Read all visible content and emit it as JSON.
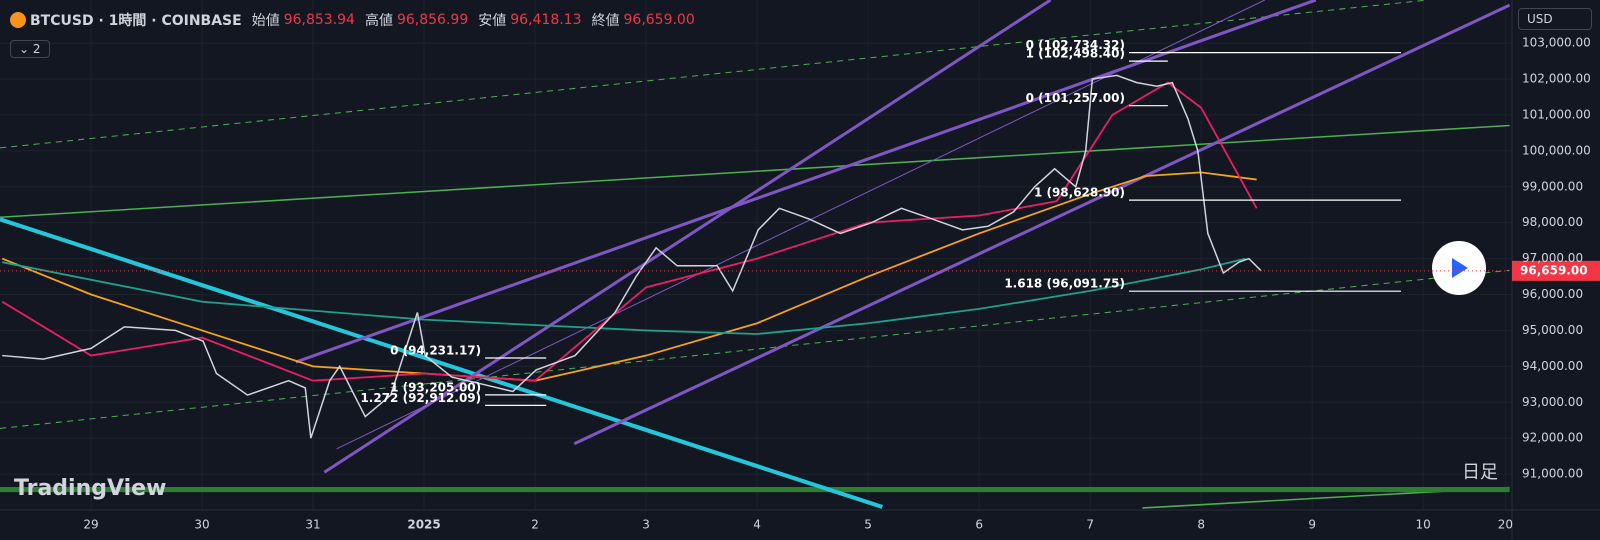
{
  "header": {
    "symbol": "BTCUSD · 1時間 · COINBASE",
    "open_label": "始値",
    "open": "96,853.94",
    "high_label": "高値",
    "high": "96,856.99",
    "low_label": "安値",
    "low": "96,418.13",
    "close_label": "終値",
    "close": "96,659.00"
  },
  "ui": {
    "currency": "USD",
    "indicators": "2",
    "logo": "TradingView",
    "timeframe": "日足"
  },
  "chart_data": {
    "type": "line",
    "x": [
      -0.8,
      -0.43,
      0,
      0.3,
      0.76,
      1.01,
      1.13,
      1.41,
      1.78,
      1.93,
      1.98,
      2.15,
      2.24,
      2.47,
      2.7,
      2.94,
      3.01,
      3.25,
      3.53,
      3.8,
      4.01,
      4.36,
      4.72,
      4.91,
      5.09,
      5.28,
      5.64,
      5.78,
      6.01,
      6.2,
      6.47,
      6.75,
      7.03,
      7.3,
      7.58,
      7.85,
      8.08,
      8.31,
      8.5,
      8.68,
      8.87,
      8.96,
      9.02,
      9.24,
      9.42,
      9.6,
      9.74,
      9.88,
      9.97,
      10.06,
      10.2,
      10.34,
      10.43,
      10.54
    ],
    "series": [
      {
        "name": "price",
        "color": "#d1d4dc",
        "values": [
          94300,
          94200,
          94500,
          95100,
          95000,
          94700,
          93800,
          93200,
          93600,
          93400,
          92000,
          93600,
          94000,
          92600,
          93200,
          95500,
          94300,
          93700,
          93500,
          93300,
          93900,
          94300,
          95500,
          96500,
          97300,
          96800,
          96800,
          96100,
          97800,
          98400,
          98100,
          97700,
          98000,
          98400,
          98100,
          97800,
          97900,
          98300,
          99000,
          99500,
          99000,
          100000,
          102000,
          102100,
          101900,
          101800,
          101900,
          100900,
          100000,
          97700,
          96600,
          96900,
          97000,
          96659
        ]
      }
    ],
    "ma_lines": [
      {
        "color": "#f7a21b",
        "x": [
          -0.8,
          0,
          1,
          2,
          3,
          4,
          5,
          6,
          7,
          8,
          9,
          9.5,
          10,
          10.5
        ],
        "values": [
          97000,
          96000,
          95000,
          94000,
          93800,
          93600,
          94300,
          95200,
          96500,
          97700,
          98800,
          99300,
          99400,
          99200
        ]
      },
      {
        "color": "#1fa08a",
        "x": [
          -0.8,
          1,
          3,
          5,
          6,
          7,
          8,
          9,
          10,
          10.4
        ],
        "values": [
          96900,
          95800,
          95300,
          95000,
          94900,
          95200,
          95600,
          96100,
          96700,
          97000
        ]
      },
      {
        "color": "#e91e63",
        "x": [
          -0.8,
          0,
          1,
          2,
          3,
          4,
          5,
          6,
          7,
          8,
          8.7,
          9.2,
          9.7,
          10,
          10.5
        ],
        "values": [
          95800,
          94300,
          94800,
          93600,
          93800,
          93600,
          96200,
          97000,
          98000,
          98200,
          98600,
          101000,
          101900,
          101200,
          98400
        ]
      }
    ],
    "fib_levels": [
      {
        "value": 102734.32,
        "label": "0 (102,734.32)",
        "x": [
          9.35,
          11.8
        ]
      },
      {
        "value": 102498.4,
        "label": "1 (102,498.40)",
        "x": [
          9.35,
          9.7
        ]
      },
      {
        "value": 101257,
        "label": "0 (101,257.00)",
        "x": [
          9.35,
          9.7
        ]
      },
      {
        "value": 98628.9,
        "label": "1 (98,628.90)",
        "x": [
          9.35,
          11.8
        ]
      },
      {
        "value": 96091.75,
        "label": "1.618 (96,091.75)",
        "x": [
          9.35,
          11.8
        ]
      },
      {
        "value": 94231.17,
        "label": "0 (94,231.17)",
        "x": [
          3.55,
          4.1
        ]
      },
      {
        "value": 93205,
        "label": "1 (93,205.00)",
        "x": [
          3.55,
          4.1
        ]
      },
      {
        "value": 92912.09,
        "label": "1.272 (92,912.09)",
        "x": [
          3.55,
          4.1
        ]
      }
    ],
    "last_price": {
      "value": 96659,
      "label": "96,659.00"
    },
    "xlim": [
      -0.82,
      12.8
    ],
    "ylim": [
      90000,
      104200
    ],
    "xticks": [
      {
        "value": 0,
        "label": "29"
      },
      {
        "value": 1,
        "label": "30"
      },
      {
        "value": 2,
        "label": "31"
      },
      {
        "value": 3,
        "label": "2025"
      },
      {
        "value": 4,
        "label": "2"
      },
      {
        "value": 5,
        "label": "3"
      },
      {
        "value": 6,
        "label": "4"
      },
      {
        "value": 7,
        "label": "5"
      },
      {
        "value": 8,
        "label": "6"
      },
      {
        "value": 9,
        "label": "7"
      },
      {
        "value": 10,
        "label": "8"
      },
      {
        "value": 11,
        "label": "9"
      },
      {
        "value": 12,
        "label": "10"
      },
      {
        "value": 12.74,
        "label": "20"
      }
    ],
    "yticks": [
      {
        "value": 91000,
        "label": "91,000.00"
      },
      {
        "value": 92000,
        "label": "92,000.00"
      },
      {
        "value": 93000,
        "label": "93,000.00"
      },
      {
        "value": 94000,
        "label": "94,000.00"
      },
      {
        "value": 95000,
        "label": "95,000.00"
      },
      {
        "value": 96000,
        "label": "96,000.00"
      },
      {
        "value": 97000,
        "label": "97,000.00"
      },
      {
        "value": 98000,
        "label": "98,000.00"
      },
      {
        "value": 99000,
        "label": "99,000.00"
      },
      {
        "value": 100000,
        "label": "100,000.00"
      },
      {
        "value": 101000,
        "label": "101,000.00"
      },
      {
        "value": 102000,
        "label": "102,000.00"
      },
      {
        "value": 103000,
        "label": "103,000.00"
      }
    ],
    "grid": true
  }
}
